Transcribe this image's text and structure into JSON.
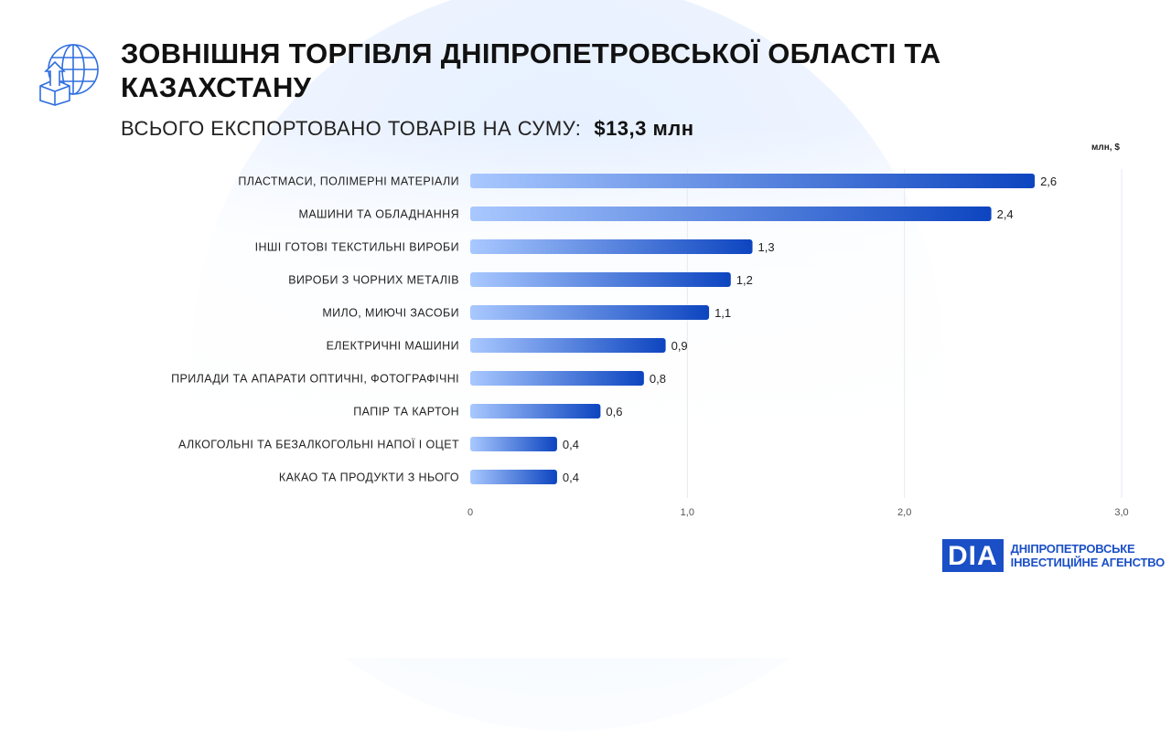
{
  "header": {
    "title": "ЗОВНІШНЯ ТОРГІВЛЯ ДНІПРОПЕТРОВСЬКОЇ ОБЛАСТІ ТА КАЗАХСТАНУ",
    "subtitle_label": "ВСЬОГО ЕКСПОРТОВАНО ТОВАРІВ НА СУМУ:",
    "subtitle_value": "$13,3 млн",
    "icon": "globe-export-box-icon"
  },
  "logo": {
    "mark": "DIA",
    "line1": "ДНІПРОПЕТРОВСЬКЕ",
    "line2": "ІНВЕСТИЦІЙНЕ АГЕНСТВО"
  },
  "colors": {
    "bar_start": "#a9c8ff",
    "bar_end": "#0d45c0",
    "accent": "#1a4fc6"
  },
  "chart_data": {
    "type": "bar",
    "orientation": "horizontal",
    "unit": "млн, $",
    "categories": [
      "ПЛАСТМАСИ, ПОЛІМЕРНІ МАТЕРІАЛИ",
      "МАШИНИ ТА ОБЛАДНАННЯ",
      "ІНШІ ГОТОВІ ТЕКСТИЛЬНІ ВИРОБИ",
      "ВИРОБИ З ЧОРНИХ МЕТАЛІВ",
      "МИЛО, МИЮЧІ ЗАСОБИ",
      "ЕЛЕКТРИЧНІ МАШИНИ",
      "ПРИЛАДИ ТА АПАРАТИ ОПТИЧНІ, ФОТОГРАФІЧНІ",
      "ПАПІР ТА КАРТОН",
      "АЛКОГОЛЬНІ ТА БЕЗАЛКОГОЛЬНІ НАПОЇ І ОЦЕТ",
      "КАКАО ТА ПРОДУКТИ З НЬОГО"
    ],
    "values": [
      2.6,
      2.4,
      1.3,
      1.2,
      1.1,
      0.9,
      0.8,
      0.6,
      0.4,
      0.4
    ],
    "value_labels": [
      "2,6",
      "2,4",
      "1,3",
      "1,2",
      "1,1",
      "0,9",
      "0,8",
      "0,6",
      "0,4",
      "0,4"
    ],
    "xlim": [
      0,
      3
    ],
    "xticks": [
      0,
      1,
      2,
      3
    ],
    "xtick_labels": [
      "0",
      "1,0",
      "2,0",
      "3,0"
    ],
    "grid": "vertical"
  }
}
